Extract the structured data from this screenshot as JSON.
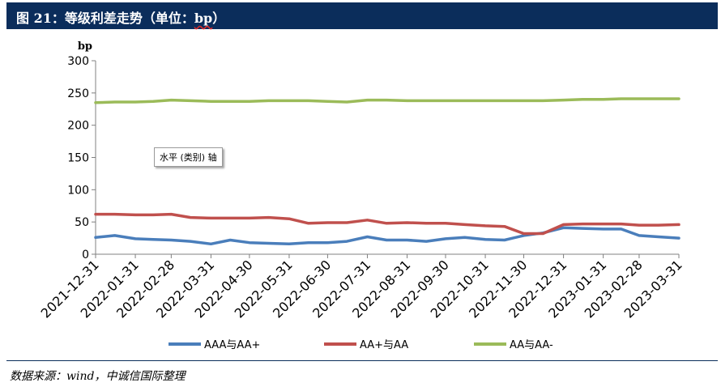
{
  "header": {
    "title_prefix": "图 21：等级利差走势（单位：",
    "title_unit": "bp",
    "title_suffix": "）"
  },
  "tooltip": {
    "text": "水平 (类别) 轴"
  },
  "footer": {
    "source": "数据来源：wind，中诚信国际整理"
  },
  "chart_data": {
    "type": "line",
    "ylabel": "bp",
    "ylim": [
      0,
      300
    ],
    "yticks": [
      0,
      50,
      100,
      150,
      200,
      250,
      300
    ],
    "x_tick_labels": [
      "2021-12-31",
      "2022-01-31",
      "2022-02-28",
      "2022-03-31",
      "2022-04-30",
      "2022-05-31",
      "2022-06-30",
      "2022-07-31",
      "2022-08-31",
      "2022-09-30",
      "2022-10-31",
      "2022-11-30",
      "2022-12-31",
      "2023-01-31",
      "2023-02-28",
      "2023-03-31"
    ],
    "x": [
      "2021-12-31",
      "2022-01-15",
      "2022-01-31",
      "2022-02-14",
      "2022-02-28",
      "2022-03-15",
      "2022-03-31",
      "2022-04-15",
      "2022-04-30",
      "2022-05-15",
      "2022-05-31",
      "2022-06-15",
      "2022-06-30",
      "2022-07-15",
      "2022-07-31",
      "2022-08-15",
      "2022-08-31",
      "2022-09-15",
      "2022-09-30",
      "2022-10-15",
      "2022-10-31",
      "2022-11-15",
      "2022-11-30",
      "2022-12-15",
      "2022-12-31",
      "2023-01-15",
      "2023-01-31",
      "2023-02-14",
      "2023-02-28",
      "2023-03-15",
      "2023-03-31"
    ],
    "legend_position": "bottom",
    "series": [
      {
        "name": "AAA与AA+",
        "color": "#4a7ebb",
        "values": [
          26,
          29,
          24,
          23,
          22,
          20,
          16,
          22,
          18,
          17,
          16,
          18,
          18,
          20,
          27,
          22,
          22,
          20,
          24,
          26,
          23,
          22,
          29,
          33,
          41,
          40,
          39,
          39,
          29,
          27,
          25
        ]
      },
      {
        "name": "AA+与AA",
        "color": "#c0504d",
        "values": [
          62,
          62,
          61,
          61,
          62,
          57,
          56,
          56,
          56,
          57,
          55,
          48,
          49,
          49,
          53,
          48,
          49,
          48,
          48,
          46,
          44,
          43,
          32,
          32,
          46,
          47,
          47,
          47,
          45,
          45,
          46
        ]
      },
      {
        "name": "AA与AA-",
        "color": "#9bbb59",
        "values": [
          235,
          236,
          236,
          237,
          239,
          238,
          237,
          237,
          237,
          238,
          238,
          238,
          237,
          236,
          239,
          239,
          238,
          238,
          238,
          238,
          238,
          238,
          238,
          238,
          239,
          240,
          240,
          241,
          241,
          241,
          241
        ]
      }
    ]
  }
}
